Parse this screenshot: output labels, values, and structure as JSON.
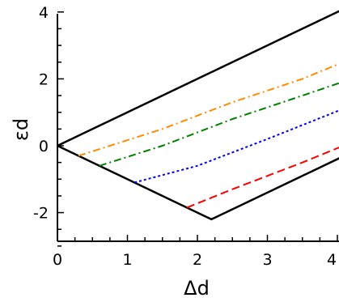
{
  "chart_data": {
    "type": "line",
    "xlabel": "Δd",
    "ylabel": "εd",
    "xlim": [
      0,
      4
    ],
    "ylim": [
      -3,
      4
    ],
    "x_ticks": [
      0,
      1,
      2,
      3,
      4
    ],
    "y_ticks": [
      -2,
      0,
      2,
      4
    ],
    "x_tick_labels": [
      "0",
      "1",
      "2",
      "3",
      "4"
    ],
    "y_tick_labels": [
      "-2",
      "0",
      "2",
      "4"
    ],
    "grid": false,
    "legend": "none",
    "series": [
      {
        "color": "#000000",
        "dash": "solid",
        "points": [
          [
            0,
            0
          ],
          [
            4.4,
            4.4
          ]
        ]
      },
      {
        "color": "#000000",
        "dash": "solid",
        "points": [
          [
            0,
            0
          ],
          [
            2.2,
            -2.2
          ],
          [
            4.4,
            0.0
          ]
        ]
      },
      {
        "color": "#ff8c00",
        "dash": "dashdot",
        "points": [
          [
            0.3,
            -0.3
          ],
          [
            1.5,
            0.5
          ],
          [
            2.5,
            1.3
          ],
          [
            3.5,
            2.0
          ],
          [
            4.2,
            2.6
          ]
        ]
      },
      {
        "color": "#008000",
        "dash": "dashdot",
        "points": [
          [
            0.6,
            -0.6
          ],
          [
            1.5,
            0.0
          ],
          [
            2.5,
            0.8
          ],
          [
            3.5,
            1.5
          ],
          [
            4.2,
            2.0
          ]
        ]
      },
      {
        "color": "#0000ff",
        "dash": "dotted",
        "points": [
          [
            1.1,
            -1.1
          ],
          [
            2.0,
            -0.6
          ],
          [
            3.0,
            0.2
          ],
          [
            4.2,
            1.2
          ]
        ]
      },
      {
        "color": "#ff0000",
        "dash": "dashed",
        "points": [
          [
            1.85,
            -1.85
          ],
          [
            2.5,
            -1.3
          ],
          [
            3.5,
            -0.5
          ],
          [
            4.2,
            0.1
          ]
        ]
      }
    ]
  }
}
